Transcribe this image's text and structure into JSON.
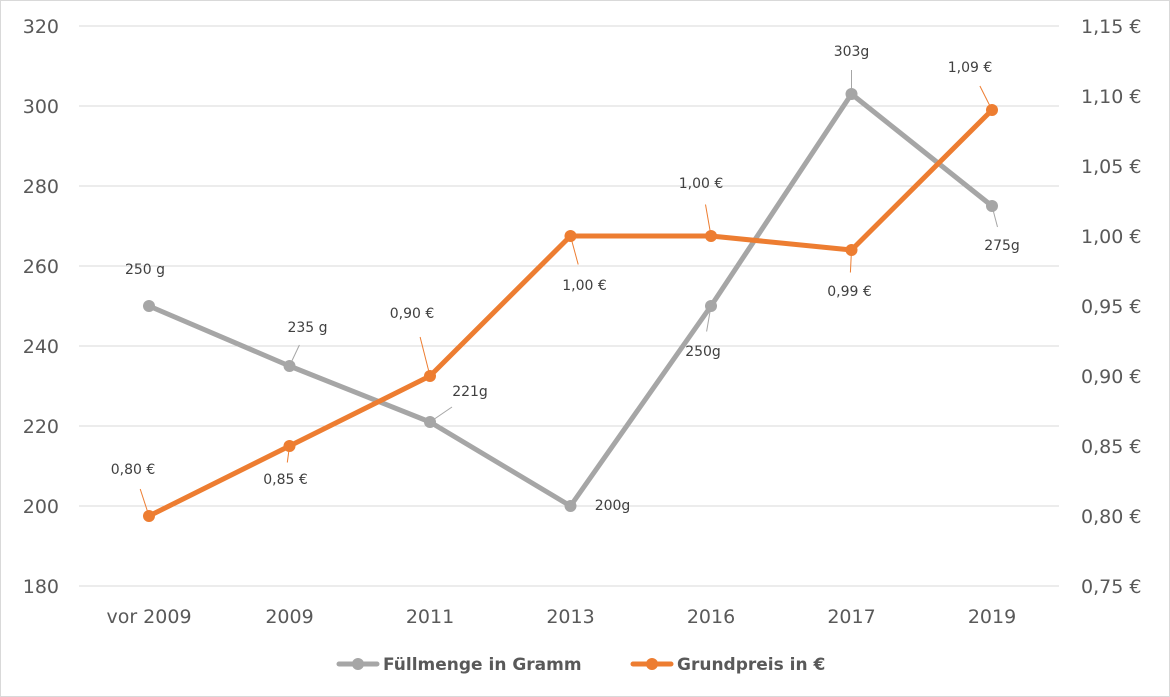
{
  "chart_data": {
    "type": "line",
    "categories": [
      "vor 2009",
      "2009",
      "2011",
      "2013",
      "2016",
      "2017",
      "2019"
    ],
    "y_left": {
      "min": 180,
      "max": 320,
      "step": 20,
      "ticks": [
        "180",
        "200",
        "220",
        "240",
        "260",
        "280",
        "300",
        "320"
      ]
    },
    "y_right": {
      "min": 0.75,
      "max": 1.15,
      "step": 0.05,
      "ticks": [
        "0,75 €",
        "0,80 €",
        "0,85 €",
        "0,90 €",
        "0,95 €",
        "1,00 €",
        "1,05 €",
        "1,10 €",
        "1,15 €"
      ]
    },
    "grid": true,
    "legend_position": "bottom",
    "series": [
      {
        "name": "Füllmenge in Gramm",
        "axis": "left",
        "color": "#a6a6a6",
        "values": [
          250,
          235,
          221,
          200,
          250,
          303,
          275
        ],
        "labels": [
          "250 g",
          "235 g",
          "221g",
          "200g",
          "250g",
          "303g",
          "275g"
        ]
      },
      {
        "name": "Grundpreis in €",
        "axis": "right",
        "color": "#ed7d31",
        "values": [
          0.8,
          0.85,
          0.9,
          1.0,
          1.0,
          0.99,
          1.09
        ],
        "labels": [
          "0,80 €",
          "0,85 €",
          "0,90 €",
          "1,00 €",
          "1,00 €",
          "0,99 €",
          "1,09 €"
        ]
      }
    ]
  }
}
